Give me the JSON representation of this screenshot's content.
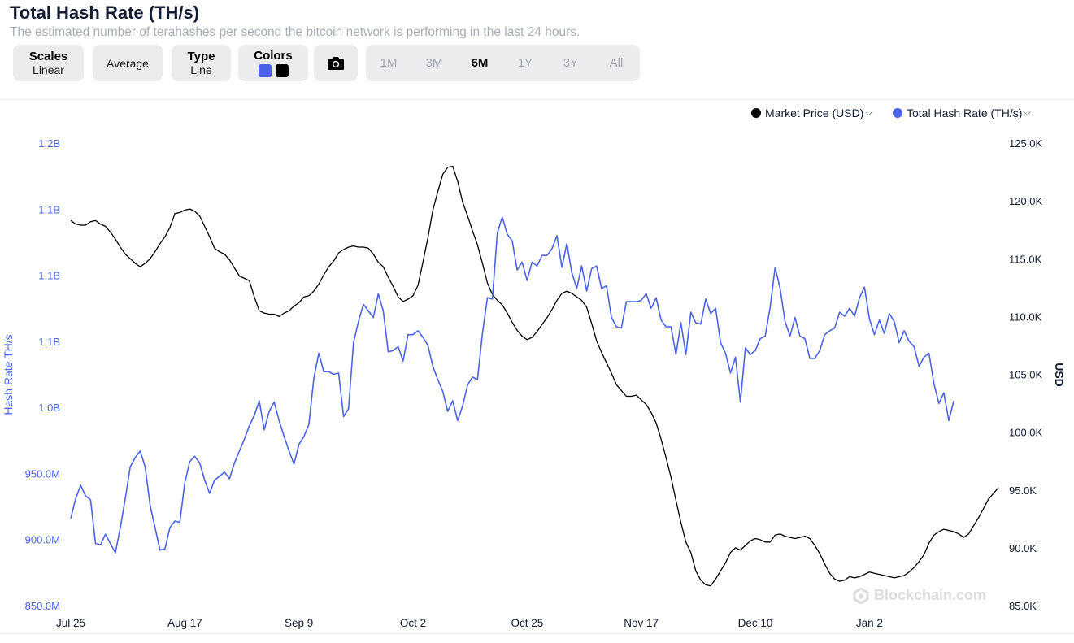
{
  "header": {
    "title": "Total Hash Rate (TH/s)",
    "subtitle": "The estimated number of terahashes per second the bitcoin network is performing in the last 24 hours."
  },
  "toolbar": {
    "scales_label": "Scales",
    "scales_value": "Linear",
    "average_label": "Average",
    "type_label": "Type",
    "type_value": "Line",
    "colors_label": "Colors",
    "color_series_1": "#4a63e7",
    "color_series_2": "#000000",
    "ranges": [
      "1M",
      "3M",
      "6M",
      "1Y",
      "3Y",
      "All"
    ],
    "active_range": "6M"
  },
  "legend": {
    "price_label": "Market Price (USD)",
    "hash_label": "Total Hash Rate (TH/s)"
  },
  "watermark": "Blockchain.com",
  "chart_data": {
    "type": "line",
    "x_tick_labels": [
      "Jul 25",
      "Aug 17",
      "Sep 9",
      "Oct 2",
      "Oct 25",
      "Nov 17",
      "Dec 10",
      "Jan 2"
    ],
    "x_tick_day_index": [
      0,
      23,
      46,
      69,
      92,
      115,
      138,
      161
    ],
    "y_left": {
      "label": "Hash Rate TH/s",
      "ticks": [
        850000000,
        900000000,
        950000000,
        1000000000,
        1050000000,
        1100000000,
        1150000000,
        1200000000
      ],
      "tick_labels": [
        "850.0M",
        "900.0M",
        "950.0M",
        "1.0B",
        "1.1B",
        "1.1B",
        "1.1B",
        "1.2B"
      ],
      "range": [
        850000000,
        1200000000
      ]
    },
    "y_right": {
      "label": "USD",
      "ticks": [
        85000,
        90000,
        95000,
        100000,
        105000,
        110000,
        115000,
        120000,
        125000
      ],
      "tick_labels": [
        "85.0K",
        "90.0K",
        "95.0K",
        "100.0K",
        "105.0K",
        "110.0K",
        "115.0K",
        "120.0K",
        "125.0K"
      ],
      "range": [
        85000,
        125000
      ]
    },
    "series": [
      {
        "name": "Market Price (USD)",
        "axis": "right",
        "color": "#000000",
        "values": [
          118300,
          118000,
          117900,
          117900,
          118200,
          118300,
          118000,
          117800,
          117300,
          116700,
          116000,
          115400,
          115000,
          114600,
          114300,
          114600,
          115000,
          115600,
          116300,
          116900,
          117700,
          118900,
          119000,
          119200,
          119300,
          119100,
          118700,
          117800,
          116900,
          115900,
          115600,
          115400,
          114900,
          114200,
          113500,
          113300,
          113100,
          111700,
          110500,
          110300,
          110200,
          110200,
          110000,
          110300,
          110500,
          110900,
          111200,
          111700,
          111800,
          112200,
          112800,
          113600,
          114300,
          114800,
          115500,
          115800,
          116000,
          116100,
          116000,
          116000,
          115900,
          115400,
          114700,
          114300,
          113400,
          112600,
          111700,
          111300,
          111500,
          111800,
          112700,
          114700,
          116800,
          119200,
          120800,
          122300,
          122900,
          123000,
          121700,
          119900,
          118700,
          117400,
          116200,
          114600,
          112900,
          111900,
          111400,
          111000,
          110300,
          109500,
          108800,
          108300,
          108000,
          108200,
          108700,
          109300,
          109900,
          110600,
          111400,
          112000,
          112200,
          112000,
          111700,
          111400,
          110800,
          109400,
          107900,
          106900,
          106000,
          105100,
          104100,
          103600,
          103100,
          103100,
          103200,
          102800,
          102400,
          101700,
          100800,
          99400,
          97800,
          96100,
          94100,
          92200,
          90500,
          89600,
          88000,
          87200,
          86800,
          86700,
          87300,
          88000,
          88700,
          89600,
          90000,
          89800,
          90200,
          90600,
          90800,
          90700,
          90500,
          90500,
          91100,
          91200,
          91000,
          90900,
          90800,
          90900,
          91000,
          90800,
          90200,
          89500,
          88600,
          87800,
          87300,
          87100,
          87200,
          87500,
          87400,
          87500,
          87700,
          87900,
          87800,
          87700,
          87600,
          87500,
          87400,
          87500,
          87600,
          87900,
          88300,
          88800,
          89400,
          90400,
          91100,
          91400,
          91600,
          91500,
          91400,
          91200,
          90900,
          91200,
          91900,
          92600,
          93400,
          94200,
          94700,
          95200
        ]
      },
      {
        "name": "Total Hash Rate (TH/s)",
        "axis": "left",
        "color": "#4a63e7",
        "values": [
          916000000,
          931000000,
          941000000,
          933000000,
          930000000,
          897000000,
          896000000,
          904000000,
          897000000,
          890000000,
          909000000,
          931000000,
          955000000,
          962000000,
          967000000,
          955000000,
          926000000,
          909000000,
          892000000,
          893000000,
          909000000,
          914000000,
          913000000,
          943000000,
          959000000,
          963000000,
          958000000,
          945000000,
          935000000,
          945000000,
          948000000,
          951000000,
          946000000,
          958000000,
          967000000,
          976000000,
          986000000,
          994000000,
          1005000000,
          983000000,
          997000000,
          1004000000,
          990000000,
          978000000,
          967000000,
          957000000,
          972000000,
          978000000,
          987000000,
          1022000000,
          1041000000,
          1027000000,
          1027000000,
          1025000000,
          1026000000,
          993000000,
          999000000,
          1049000000,
          1065000000,
          1078000000,
          1073000000,
          1068000000,
          1086000000,
          1073000000,
          1042000000,
          1043000000,
          1046000000,
          1035000000,
          1055000000,
          1055000000,
          1058000000,
          1053000000,
          1047000000,
          1031000000,
          1021000000,
          1012000000,
          997000000,
          1005000000,
          990000000,
          1001000000,
          1017000000,
          1023000000,
          1021000000,
          1056000000,
          1083000000,
          1082000000,
          1132000000,
          1144000000,
          1131000000,
          1126000000,
          1104000000,
          1110000000,
          1096000000,
          1110000000,
          1107000000,
          1115000000,
          1115000000,
          1120000000,
          1130000000,
          1106000000,
          1124000000,
          1102000000,
          1090000000,
          1107000000,
          1088000000,
          1105000000,
          1107000000,
          1090000000,
          1092000000,
          1068000000,
          1061000000,
          1060000000,
          1080000000,
          1080000000,
          1080000000,
          1081000000,
          1086000000,
          1075000000,
          1083000000,
          1066000000,
          1061000000,
          1061000000,
          1040000000,
          1064000000,
          1040000000,
          1072000000,
          1064000000,
          1063000000,
          1082000000,
          1071000000,
          1075000000,
          1049000000,
          1041000000,
          1026000000,
          1038000000,
          1004000000,
          1045000000,
          1040000000,
          1043000000,
          1052000000,
          1054000000,
          1076000000,
          1106000000,
          1090000000,
          1065000000,
          1054000000,
          1068000000,
          1054000000,
          1052000000,
          1037000000,
          1037000000,
          1043000000,
          1055000000,
          1058000000,
          1060000000,
          1072000000,
          1069000000,
          1075000000,
          1069000000,
          1083000000,
          1091000000,
          1067000000,
          1055000000,
          1066000000,
          1056000000,
          1071000000,
          1065000000,
          1049000000,
          1058000000,
          1050000000,
          1046000000,
          1031000000,
          1038000000,
          1041000000,
          1018000000,
          1003000000,
          1011000000,
          990000000,
          1005000000
        ]
      }
    ],
    "legend_position": "top-right",
    "grid": false
  }
}
